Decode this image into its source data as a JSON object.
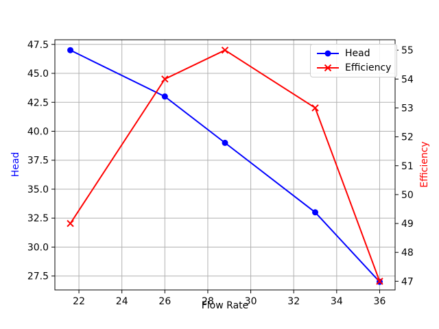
{
  "chart_data": {
    "type": "line",
    "title": "",
    "xlabel": "Flow Rate",
    "ylabel_left": "Head",
    "ylabel_right": "Efficiency",
    "x": [
      21.6,
      26,
      28.8,
      33,
      36
    ],
    "series": [
      {
        "name": "Head",
        "axis": "left",
        "color": "#0000ff",
        "marker": "circle",
        "values": [
          47,
          43,
          39,
          33,
          27
        ]
      },
      {
        "name": "Efficiency",
        "axis": "right",
        "color": "#ff0000",
        "marker": "x",
        "values": [
          49,
          54,
          55,
          53,
          47
        ]
      }
    ],
    "xlim": [
      20.88,
      36.72
    ],
    "ylim_left": [
      26.3,
      47.9
    ],
    "ylim_right": [
      46.7,
      55.36
    ],
    "xticks": [
      22,
      24,
      26,
      28,
      30,
      32,
      34,
      36
    ],
    "xtick_labels": [
      "22",
      "24",
      "26",
      "28",
      "30",
      "32",
      "34",
      "36"
    ],
    "yticks_left": [
      27.5,
      30,
      32.5,
      35,
      37.5,
      40,
      42.5,
      45,
      47.5
    ],
    "ytick_labels_left": [
      "27.5",
      "30.0",
      "32.5",
      "35.0",
      "37.5",
      "40.0",
      "42.5",
      "45.0",
      "47.5"
    ],
    "yticks_right": [
      47,
      48,
      49,
      50,
      51,
      52,
      53,
      54,
      55
    ],
    "ytick_labels_right": [
      "47",
      "48",
      "49",
      "50",
      "51",
      "52",
      "53",
      "54",
      "55"
    ],
    "grid": true,
    "legend_position": "upper right",
    "colors": {
      "grid": "#b0b0b0",
      "spine": "#000000",
      "tick_label": "#000000",
      "background": "#ffffff"
    }
  },
  "legend": {
    "items": [
      {
        "label": "Head"
      },
      {
        "label": "Efficiency"
      }
    ]
  }
}
